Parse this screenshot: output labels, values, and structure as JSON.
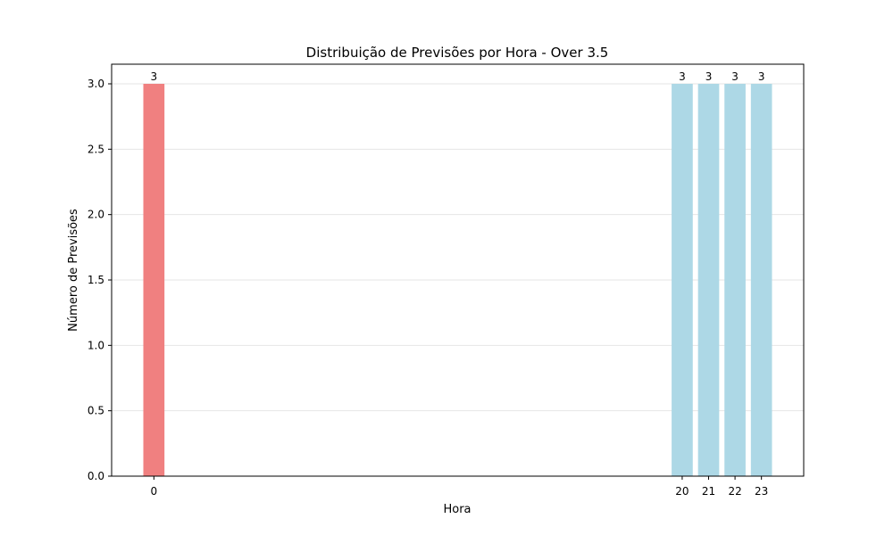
{
  "chart_data": {
    "type": "bar",
    "title": "Distribuição de Previsões por Hora - Over 3.5",
    "xlabel": "Hora",
    "ylabel": "Número de Previsões",
    "x": [
      0,
      20,
      21,
      22,
      23
    ],
    "values": [
      3,
      3,
      3,
      3,
      3
    ],
    "data_labels": [
      "3",
      "3",
      "3",
      "3",
      "3"
    ],
    "colors": [
      "#f08080",
      "#add8e6",
      "#add8e6",
      "#add8e6",
      "#add8e6"
    ],
    "xlim": [
      -1.6,
      24.6
    ],
    "ylim": [
      0,
      3.15
    ],
    "yticks": [
      0.0,
      0.5,
      1.0,
      1.5,
      2.0,
      2.5,
      3.0
    ],
    "ytick_labels": [
      "0.0",
      "0.5",
      "1.0",
      "1.5",
      "2.0",
      "2.5",
      "3.0"
    ],
    "xticks": [
      0,
      20,
      21,
      22,
      23
    ],
    "xtick_labels": [
      "0",
      "20",
      "21",
      "22",
      "23"
    ],
    "grid": "y-only",
    "legend": "none"
  }
}
